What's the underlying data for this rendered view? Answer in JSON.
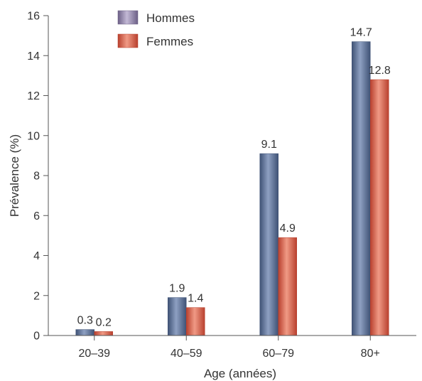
{
  "chart_data": {
    "type": "bar",
    "categories": [
      "20–39",
      "40–59",
      "60–79",
      "80+"
    ],
    "series": [
      {
        "name": "Hommes",
        "values": [
          0.3,
          1.9,
          9.1,
          14.7
        ],
        "color": "#5b6f94"
      },
      {
        "name": "Femmes",
        "values": [
          0.2,
          1.4,
          4.9,
          12.8
        ],
        "color": "#d9533f"
      }
    ],
    "data_labels": [
      [
        "0.3",
        "1.9",
        "9.1",
        "14.7"
      ],
      [
        "0.2",
        "1.4",
        "4.9",
        "12.8"
      ]
    ],
    "title": "",
    "xlabel": "Age (années)",
    "ylabel": "Prévalence (%)",
    "ylim": [
      0,
      16
    ],
    "yticks": [
      "0",
      "2",
      "4",
      "6",
      "8",
      "10",
      "12",
      "14",
      "16"
    ],
    "grid": false,
    "legend": {
      "position": "top-left",
      "entries": [
        "Hommes",
        "Femmes"
      ],
      "swatch_colors": [
        "#8a7fa3",
        "#d9533f"
      ]
    }
  }
}
